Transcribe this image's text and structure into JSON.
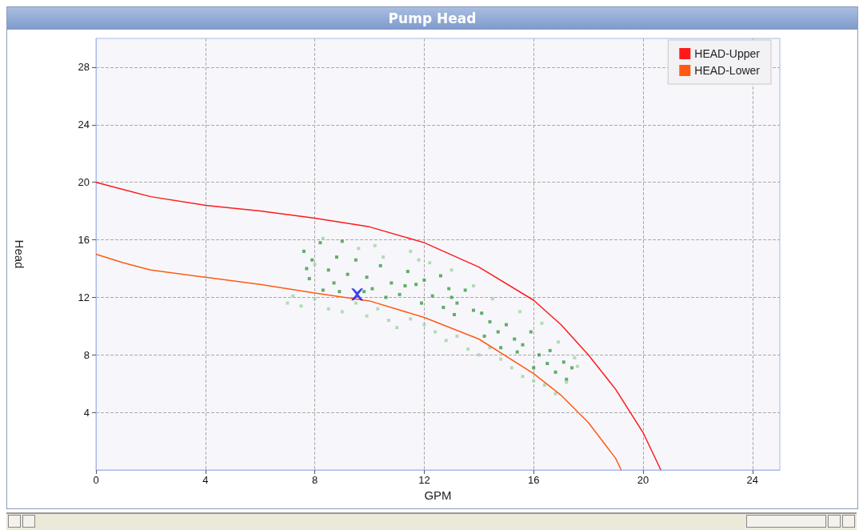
{
  "chart_data": {
    "type": "line",
    "title": "Pump Head",
    "xlabel": "GPM",
    "ylabel": "Head",
    "xlim": [
      0,
      25
    ],
    "ylim": [
      0,
      30
    ],
    "xticks": [
      0,
      4,
      8,
      12,
      16,
      20,
      24
    ],
    "yticks": [
      4,
      8,
      12,
      16,
      20,
      24,
      28
    ],
    "grid": true,
    "legend": "top right",
    "line_style": "solid",
    "series": [
      {
        "name": "HEAD-Upper",
        "color": "#ff1a1a",
        "x": [
          0,
          1,
          2,
          4,
          6,
          8,
          10,
          12,
          14,
          16,
          17,
          18,
          19,
          20,
          20.65
        ],
        "values": [
          20,
          19.5,
          19,
          18.4,
          18,
          17.5,
          16.9,
          15.8,
          14.1,
          11.8,
          10.1,
          8,
          5.6,
          2.6,
          0
        ]
      },
      {
        "name": "HEAD-Lower",
        "color": "#ff5a14",
        "x": [
          0,
          1,
          2,
          4,
          6,
          8,
          10,
          12,
          14,
          16,
          17,
          18,
          19,
          19.2
        ],
        "values": [
          15,
          14.4,
          13.9,
          13.4,
          12.9,
          12.3,
          11.75,
          10.6,
          9.1,
          6.7,
          5.2,
          3.3,
          0.8,
          0
        ]
      },
      {
        "type": "scatter",
        "marker": "square",
        "color": "#3c9a46",
        "x": [
          7.6,
          7.9,
          8.2,
          8.5,
          8.8,
          9.0,
          7.8,
          8.3,
          8.7,
          9.2,
          9.5,
          9.9,
          10.1,
          10.4,
          10.8,
          11.1,
          11.4,
          11.7,
          12.0,
          12.3,
          12.6,
          12.9,
          13.2,
          13.5,
          13.8,
          13.1,
          12.7,
          14.1,
          14.4,
          14.7,
          14.2,
          15.0,
          15.3,
          15.6,
          14.8,
          15.9,
          16.2,
          16.5,
          16.8,
          17.1,
          17.4,
          16.6,
          17.2,
          16.0,
          15.4,
          11.3,
          10.6,
          9.8,
          8.9,
          11.9,
          13.0,
          7.7
        ],
        "values": [
          15.2,
          14.6,
          15.8,
          13.9,
          14.8,
          15.9,
          13.3,
          12.5,
          13.0,
          13.6,
          14.6,
          13.4,
          12.6,
          14.2,
          13.0,
          12.2,
          13.8,
          12.9,
          13.2,
          12.1,
          13.5,
          12.6,
          11.6,
          12.5,
          11.1,
          10.8,
          11.3,
          10.9,
          10.3,
          9.6,
          9.3,
          10.1,
          9.1,
          8.7,
          8.5,
          9.6,
          8.0,
          7.4,
          6.8,
          7.5,
          7.1,
          8.3,
          6.3,
          7.1,
          8.2,
          12.8,
          12.0,
          12.4,
          12.4,
          11.6,
          12.0,
          14.0
        ]
      },
      {
        "type": "scatter",
        "marker": "square",
        "color": "#a3d3a5",
        "x": [
          7.0,
          7.2,
          7.5,
          8.0,
          8.5,
          9.0,
          9.5,
          9.9,
          10.3,
          10.7,
          11.0,
          11.5,
          12.0,
          12.4,
          12.8,
          13.2,
          13.6,
          14.0,
          14.4,
          14.8,
          15.2,
          15.6,
          16.0,
          16.4,
          16.8,
          17.2,
          17.6,
          13.0,
          12.2,
          11.5,
          10.5,
          9.6,
          8.3,
          14.5,
          15.5,
          16.3,
          13.8,
          10.2,
          16.9,
          17.5,
          8.0,
          11.8
        ],
        "values": [
          11.6,
          12.1,
          11.4,
          11.9,
          11.2,
          11.0,
          11.6,
          10.7,
          11.2,
          10.4,
          9.9,
          10.5,
          10.1,
          9.6,
          9.0,
          9.3,
          8.4,
          8.0,
          8.5,
          7.7,
          7.1,
          6.5,
          6.2,
          5.9,
          5.3,
          6.1,
          7.2,
          13.9,
          14.4,
          15.2,
          14.8,
          15.4,
          16.1,
          11.9,
          11.0,
          10.2,
          12.8,
          15.6,
          8.9,
          7.8,
          14.3,
          14.6
        ]
      },
      {
        "type": "scatter",
        "marker": "cross",
        "color": "#0a14f0",
        "x": [
          9.55
        ],
        "values": [
          12.2
        ]
      }
    ]
  }
}
